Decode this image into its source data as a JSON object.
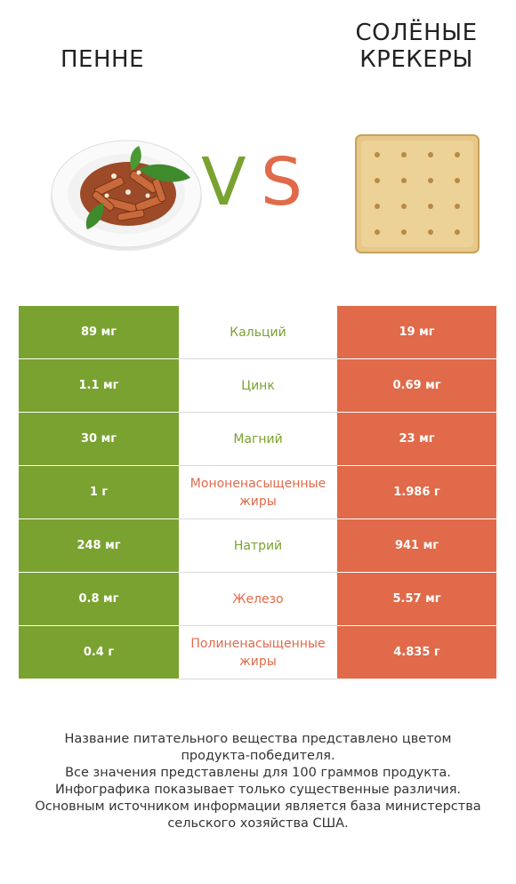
{
  "header": {
    "left_title": "ПЕННЕ",
    "right_title_lines": [
      "СОЛЁНЫЕ",
      "КРЕКЕРЫ"
    ],
    "vs_v": "V",
    "vs_s": "S"
  },
  "colors": {
    "left_accent": "#7aa230",
    "right_accent": "#e06a49"
  },
  "chart_data": {
    "type": "table",
    "columns": [
      "Пенне",
      "Солёные крекеры"
    ],
    "rows": [
      {
        "nutrient": "Кальций",
        "left": "89 мг",
        "right": "19 мг",
        "winner": "left"
      },
      {
        "nutrient": "Цинк",
        "left": "1.1 мг",
        "right": "0.69 мг",
        "winner": "left"
      },
      {
        "nutrient": "Магний",
        "left": "30 мг",
        "right": "23 мг",
        "winner": "left"
      },
      {
        "nutrient": "Мононенасыщенные\nжиры",
        "left": "1 г",
        "right": "1.986 г",
        "winner": "right"
      },
      {
        "nutrient": "Натрий",
        "left": "248 мг",
        "right": "941 мг",
        "winner": "left"
      },
      {
        "nutrient": "Железо",
        "left": "0.8 мг",
        "right": "5.57 мг",
        "winner": "right"
      },
      {
        "nutrient": "Полиненасыщенные\nжиры",
        "left": "0.4 г",
        "right": "4.835 г",
        "winner": "right"
      }
    ]
  },
  "footer": {
    "lines": [
      "Название питательного вещества представлено цветом",
      "продукта-победителя.",
      "Все значения представлены для 100 граммов продукта.",
      "Инфографика показывает только существенные различия.",
      "Основным источником информации является база министерства",
      "сельского хозяйства США."
    ]
  }
}
